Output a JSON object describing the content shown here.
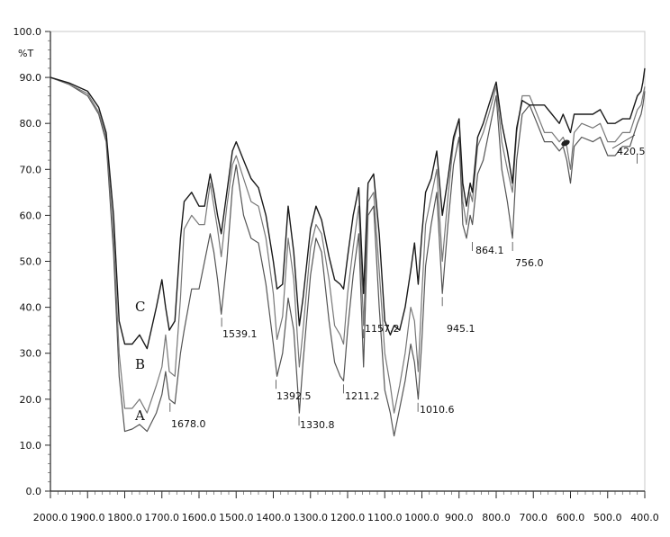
{
  "chart_data": {
    "type": "line",
    "title": "",
    "xlabel": "",
    "ylabel": "%T",
    "xlim": [
      2000,
      400
    ],
    "ylim": [
      0,
      100
    ],
    "x_reversed": true,
    "grid": false,
    "x_ticks": [
      "2000.0",
      "1900.0",
      "1800.0",
      "1700.0",
      "1600.0",
      "1500.0",
      "1400.0",
      "1300.0",
      "1200.0",
      "1100.0",
      "1000.0",
      "900.0",
      "800.0",
      "700.0",
      "600.0",
      "500.0",
      "400.0"
    ],
    "y_ticks": [
      "0.0",
      "10.0",
      "20.0",
      "30.0",
      "40.0",
      "50.0",
      "60.0",
      "70.0",
      "80.0",
      "90.0",
      "100.0"
    ],
    "series": [
      {
        "name": "A",
        "color": "#555555",
        "x": [
          2000,
          1950,
          1900,
          1870,
          1850,
          1830,
          1815,
          1800,
          1780,
          1760,
          1740,
          1715,
          1700,
          1690,
          1680,
          1665,
          1650,
          1640,
          1620,
          1600,
          1585,
          1570,
          1560,
          1550,
          1540,
          1525,
          1510,
          1500,
          1480,
          1460,
          1440,
          1420,
          1400,
          1390,
          1375,
          1360,
          1345,
          1330,
          1320,
          1300,
          1285,
          1270,
          1250,
          1235,
          1220,
          1211,
          1200,
          1185,
          1170,
          1157,
          1145,
          1130,
          1115,
          1100,
          1085,
          1075,
          1060,
          1045,
          1030,
          1020,
          1010,
          1000,
          990,
          975,
          960,
          945,
          930,
          915,
          900,
          890,
          880,
          870,
          864,
          850,
          835,
          820,
          800,
          785,
          770,
          756,
          745,
          730,
          710,
          690,
          670,
          650,
          630,
          620,
          610,
          600,
          590,
          570,
          540,
          520,
          500,
          480,
          460,
          440,
          420,
          410,
          405,
          400
        ],
        "y": [
          90,
          88.5,
          86,
          82,
          76,
          52,
          25,
          13,
          13.5,
          14.5,
          13,
          17,
          21,
          26,
          20,
          19,
          30,
          35,
          44,
          44,
          50,
          56,
          52,
          46,
          38.5,
          50,
          66,
          71,
          60,
          55,
          54,
          45,
          32,
          25,
          30,
          42,
          35,
          17,
          28,
          47,
          55,
          52,
          37,
          28,
          25,
          24,
          35,
          47,
          56,
          27,
          60,
          62,
          40,
          22,
          17,
          12,
          18,
          24,
          32,
          28,
          20,
          33,
          49,
          58,
          65,
          43,
          58,
          71,
          77,
          58,
          55,
          60,
          58,
          69,
          72,
          78,
          86,
          70,
          63,
          55,
          72,
          82,
          84,
          80,
          76,
          76,
          74,
          75,
          72,
          67,
          75,
          77,
          76,
          77,
          73,
          73,
          75,
          75,
          80,
          82,
          84,
          87
        ]
      },
      {
        "name": "B",
        "color": "#777777",
        "x": [
          2000,
          1950,
          1900,
          1870,
          1850,
          1830,
          1815,
          1800,
          1780,
          1760,
          1740,
          1715,
          1700,
          1690,
          1680,
          1665,
          1650,
          1640,
          1620,
          1600,
          1585,
          1570,
          1560,
          1550,
          1540,
          1525,
          1510,
          1500,
          1480,
          1460,
          1440,
          1420,
          1400,
          1390,
          1375,
          1360,
          1345,
          1330,
          1320,
          1300,
          1285,
          1270,
          1250,
          1235,
          1220,
          1211,
          1200,
          1185,
          1170,
          1157,
          1145,
          1130,
          1115,
          1100,
          1085,
          1075,
          1060,
          1045,
          1030,
          1020,
          1010,
          1000,
          990,
          975,
          960,
          945,
          930,
          915,
          900,
          890,
          880,
          870,
          864,
          850,
          835,
          820,
          800,
          785,
          770,
          756,
          745,
          730,
          710,
          690,
          670,
          650,
          630,
          620,
          610,
          600,
          590,
          570,
          540,
          520,
          500,
          480,
          460,
          440,
          420,
          410,
          405,
          400
        ],
        "y": [
          90,
          88.5,
          86.5,
          82.5,
          77,
          55,
          30,
          18,
          18,
          20,
          17,
          23,
          27,
          34,
          26,
          25,
          42,
          57,
          60,
          58,
          58,
          67,
          62,
          57,
          51,
          62,
          71,
          73,
          68,
          63,
          62,
          55,
          43,
          33,
          38,
          55,
          46,
          27,
          35,
          53,
          58,
          56,
          46,
          36,
          34,
          32,
          43,
          53,
          62,
          36,
          63,
          65,
          48,
          30,
          23,
          17,
          23,
          30,
          40,
          37,
          26,
          43,
          58,
          64,
          70,
          50,
          64,
          76,
          81,
          63,
          58,
          65,
          63,
          75,
          78,
          82,
          88,
          76,
          70,
          65,
          78,
          86,
          86,
          82,
          78,
          78,
          76,
          77,
          75,
          70,
          78,
          80,
          79,
          80,
          76,
          76,
          78,
          78,
          83,
          84,
          86,
          88
        ]
      },
      {
        "name": "C",
        "color": "#1a1a1a",
        "x": [
          2000,
          1950,
          1900,
          1870,
          1850,
          1830,
          1815,
          1800,
          1780,
          1760,
          1740,
          1715,
          1700,
          1690,
          1680,
          1665,
          1650,
          1640,
          1620,
          1600,
          1585,
          1570,
          1560,
          1550,
          1540,
          1525,
          1510,
          1500,
          1480,
          1460,
          1440,
          1420,
          1400,
          1390,
          1375,
          1360,
          1345,
          1330,
          1320,
          1300,
          1285,
          1270,
          1250,
          1235,
          1220,
          1211,
          1200,
          1185,
          1170,
          1157,
          1145,
          1130,
          1115,
          1100,
          1085,
          1075,
          1060,
          1045,
          1030,
          1020,
          1010,
          1000,
          990,
          975,
          960,
          945,
          930,
          915,
          900,
          890,
          880,
          870,
          864,
          850,
          835,
          820,
          800,
          785,
          770,
          756,
          745,
          730,
          710,
          690,
          670,
          650,
          630,
          620,
          610,
          600,
          590,
          570,
          540,
          520,
          500,
          480,
          460,
          440,
          420,
          410,
          405,
          400
        ],
        "y": [
          90,
          88.8,
          87,
          83.5,
          78,
          60,
          37,
          32,
          32,
          34,
          31,
          40,
          46,
          40,
          35,
          37,
          55,
          63,
          65,
          62,
          62,
          69,
          65,
          60,
          56,
          65,
          74,
          76,
          72,
          68,
          66,
          60,
          50,
          44,
          45,
          62,
          52,
          36,
          42,
          57,
          62,
          59,
          51,
          46,
          45,
          44,
          51,
          60,
          66,
          43,
          67,
          69,
          56,
          37,
          34,
          36,
          35,
          40,
          48,
          54,
          45,
          56,
          65,
          68,
          74,
          60,
          68,
          77,
          81,
          67,
          62,
          67,
          65,
          77,
          80,
          84,
          89,
          80,
          74,
          67,
          79,
          85,
          84,
          84,
          84,
          82,
          80,
          82,
          80,
          78,
          82,
          82,
          82,
          83,
          80,
          80,
          81,
          81,
          86,
          87,
          89,
          92
        ]
      }
    ],
    "peak_labels": [
      "1678.0",
      "1539.1",
      "1392.5",
      "1330.8",
      "1211.2",
      "1157.2",
      "1010.6",
      "945.1",
      "864.1",
      "756.0",
      "420.5"
    ],
    "curve_labels": [
      "C",
      "B",
      "A"
    ]
  }
}
